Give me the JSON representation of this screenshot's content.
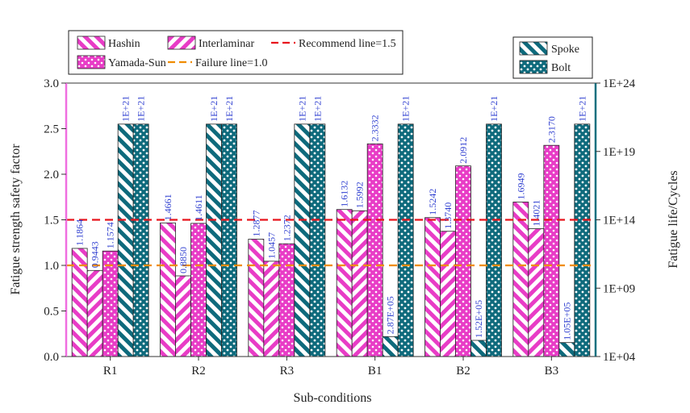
{
  "chart_data": {
    "type": "bar",
    "xlabel": "Sub-conditions",
    "ylabel_left": "Fatigue strength safety factor",
    "ylabel_right": "Fatigue life/Cycles",
    "categories": [
      "R1",
      "R2",
      "R3",
      "B1",
      "B2",
      "B3"
    ],
    "y_left": {
      "min": 0,
      "max": 3.0,
      "ticks": [
        "0.0",
        "0.5",
        "1.0",
        "1.5",
        "2.0",
        "2.5",
        "3.0"
      ]
    },
    "y_right": {
      "scale": "log",
      "min_exp": 4,
      "max_exp": 24,
      "ticks": [
        "1E+04",
        "1E+09",
        "1E+14",
        "1E+19",
        "1E+24"
      ]
    },
    "series": [
      {
        "name": "Hashin",
        "axis": "left",
        "pattern": "hashin",
        "values": [
          1.1864,
          1.4661,
          1.2877,
          1.6132,
          1.5242,
          1.6949
        ],
        "labels": [
          "1.1864",
          "1.4661",
          "1.2877",
          "1.6132",
          "1.5242",
          "1.6949"
        ]
      },
      {
        "name": "Interlaminar",
        "axis": "left",
        "pattern": "inter",
        "values": [
          0.9443,
          0.885,
          1.0457,
          1.5992,
          1.374,
          1.4021
        ],
        "labels": [
          "0.9443",
          "0.8850",
          "1.0457",
          "1.5992",
          "1.3740",
          "1.4021"
        ]
      },
      {
        "name": "Yamada-Sun",
        "axis": "left",
        "pattern": "yamada",
        "values": [
          1.1574,
          1.4611,
          1.2372,
          2.3332,
          2.0912,
          2.317
        ],
        "labels": [
          "1.1574",
          "1.4611",
          "1.2372",
          "2.3332",
          "2.0912",
          "2.3170"
        ]
      },
      {
        "name": "Spoke",
        "axis": "right",
        "pattern": "spoke",
        "values": [
          1e+21,
          1e+21,
          1e+21,
          287000,
          152000,
          105000
        ],
        "labels": [
          "1E+21",
          "1E+21",
          "1E+21",
          "2.87E+05",
          "1.52E+05",
          "1.05E+05"
        ]
      },
      {
        "name": "Bolt",
        "axis": "right",
        "pattern": "bolt",
        "values": [
          1e+21,
          1e+21,
          1e+21,
          1e+21,
          1e+21,
          1e+21
        ],
        "labels": [
          "1E+21",
          "1E+21",
          "1E+21",
          "1E+21",
          "1E+21",
          "1E+21"
        ]
      }
    ],
    "reference_lines": [
      {
        "name": "Recommend line=1.5",
        "value": 1.5,
        "color": "#e8141c"
      },
      {
        "name": "Failure line=1.0",
        "value": 1.0,
        "color": "#f08c00"
      }
    ],
    "legend_left": [
      "Hashin",
      "Interlaminar",
      "Recommend line=1.5",
      "Yamada-Sun",
      "Failure line=1.0"
    ],
    "legend_right": [
      "Spoke",
      "Bolt"
    ],
    "colors": {
      "magenta": "#e83cc6",
      "teal": "#0e6a7c",
      "label": "#2f3fd0",
      "left_axis": "#f06ee0",
      "right_axis": "#11707f"
    }
  }
}
